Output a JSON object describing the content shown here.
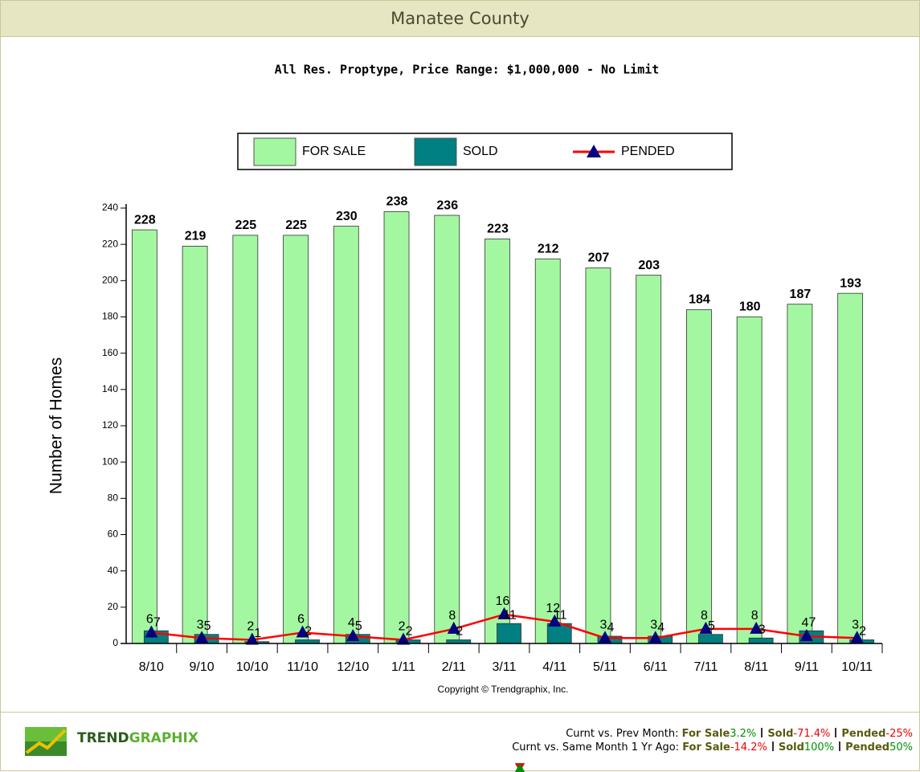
{
  "chart_data": {
    "type": "bar",
    "title": "Manatee County",
    "subtitle": "All Res. Proptype, Price Range: $1,000,000 - No Limit",
    "y_label": "Number of Homes",
    "annotation": "Copyright © Trendgraphix, Inc.",
    "categories": [
      "8/10",
      "9/10",
      "10/10",
      "11/10",
      "12/10",
      "1/11",
      "2/11",
      "3/11",
      "4/11",
      "5/11",
      "6/11",
      "7/11",
      "8/11",
      "9/11",
      "10/11"
    ],
    "series": [
      {
        "name": "FOR SALE",
        "color": "#a3f7a0",
        "kind": "bar",
        "values": [
          228,
          219,
          225,
          225,
          230,
          238,
          236,
          223,
          212,
          207,
          203,
          184,
          180,
          187,
          193
        ]
      },
      {
        "name": "SOLD",
        "color": "#008080",
        "kind": "bar",
        "values": [
          7,
          5,
          1,
          2,
          5,
          2,
          2,
          11,
          11,
          4,
          4,
          5,
          3,
          7,
          2
        ]
      },
      {
        "name": "PENDED",
        "color": "#ff0000",
        "marker_color": "#000080",
        "kind": "line",
        "values": [
          6,
          3,
          2,
          6,
          4,
          2,
          8,
          16,
          12,
          3,
          3,
          8,
          8,
          4,
          3
        ]
      }
    ],
    "ylim": [
      0,
      240
    ],
    "yticks": [
      0,
      20,
      40,
      60,
      80,
      100,
      120,
      140,
      160,
      180,
      200,
      220,
      240
    ],
    "legend": "top"
  },
  "footer": {
    "brand": [
      "TREND",
      "GRAPHIX"
    ],
    "comparisons": [
      {
        "label": "Curnt vs. Prev Month:",
        "items": [
          {
            "name": "For Sale",
            "direction": "up",
            "change": "3.2%"
          },
          {
            "name": "Sold",
            "direction": "down",
            "change": "-71.4%"
          },
          {
            "name": "Pended",
            "direction": "down",
            "change": "-25%"
          }
        ]
      },
      {
        "label": "Curnt vs. Same Month 1 Yr Ago:",
        "items": [
          {
            "name": "For Sale",
            "direction": "down",
            "change": "-14.2%"
          },
          {
            "name": "Sold",
            "direction": "up",
            "change": "100%"
          },
          {
            "name": "Pended",
            "direction": "up",
            "change": "50%"
          }
        ]
      }
    ]
  }
}
